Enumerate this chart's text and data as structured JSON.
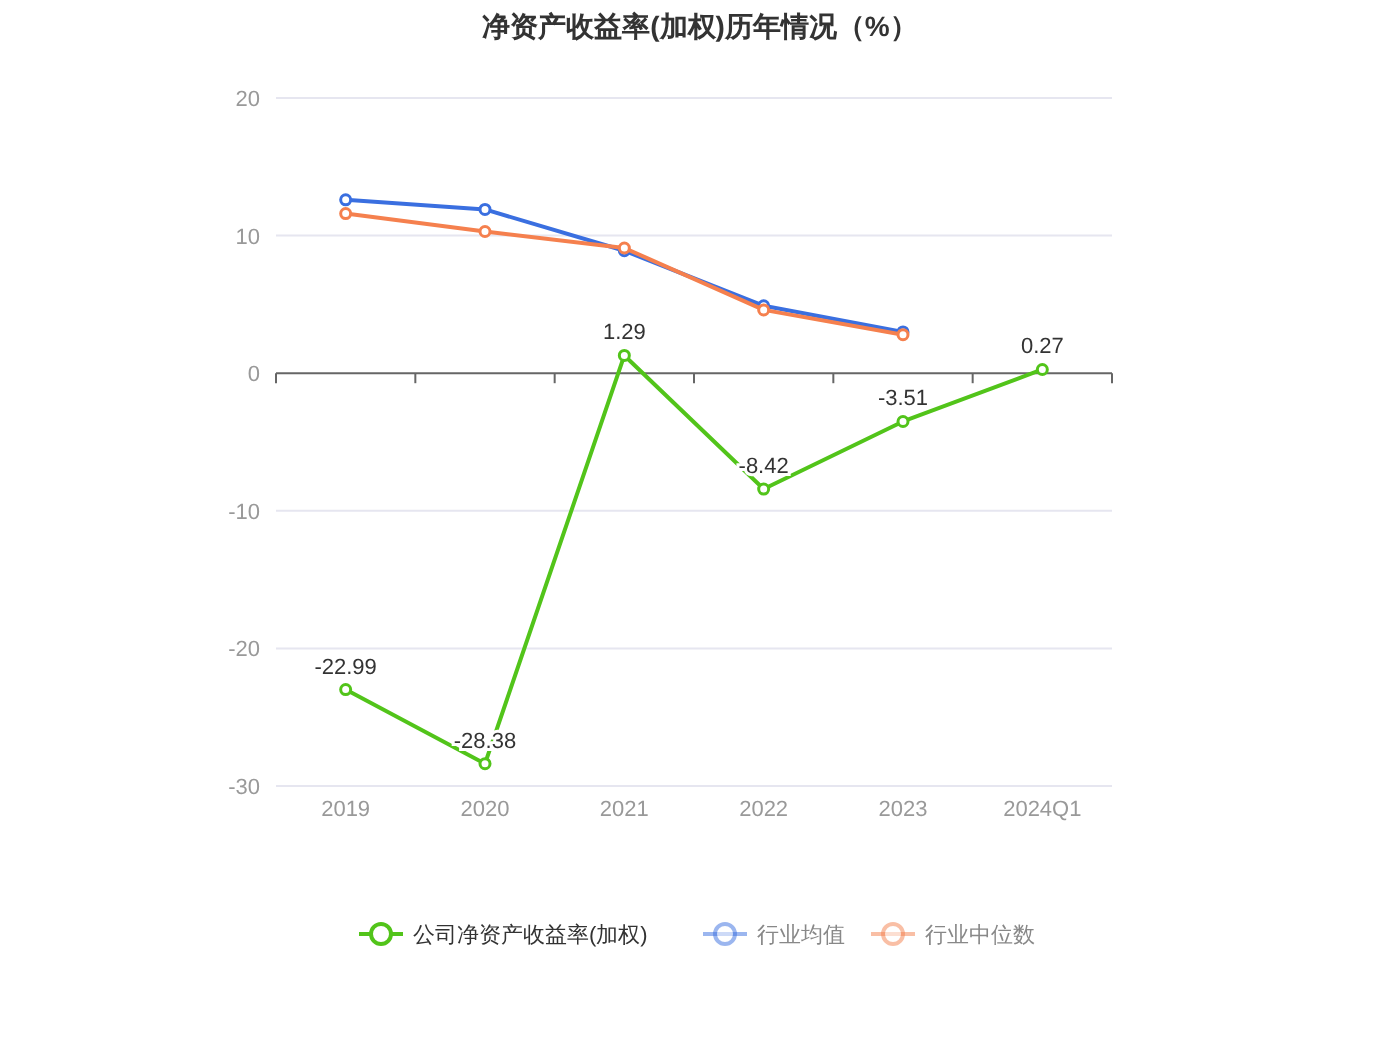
{
  "chart_data": {
    "type": "line",
    "title": "净资产收益率(加权)历年情况（%）",
    "categories": [
      "2019",
      "2020",
      "2021",
      "2022",
      "2023",
      "2024Q1"
    ],
    "series": [
      {
        "name": "公司净资产收益率(加权)",
        "color": "#52c41a",
        "values": [
          -22.99,
          -28.38,
          1.29,
          -8.42,
          -3.51,
          0.27
        ],
        "value_labels": [
          "-22.99",
          "-28.38",
          "1.29",
          "-8.42",
          "-3.51",
          "0.27"
        ]
      },
      {
        "name": "行业均值",
        "color": "#3a6fe0",
        "values": [
          12.6,
          11.9,
          8.9,
          4.9,
          3.0,
          null
        ]
      },
      {
        "name": "行业中位数",
        "color": "#f5804e",
        "values": [
          11.6,
          10.3,
          9.1,
          4.6,
          2.8,
          null
        ]
      }
    ],
    "ylim": [
      -30,
      20
    ],
    "yticks": [
      -30,
      -20,
      -10,
      0,
      10,
      20
    ],
    "grid": "y",
    "legend": "bottom",
    "marker": "circle"
  }
}
